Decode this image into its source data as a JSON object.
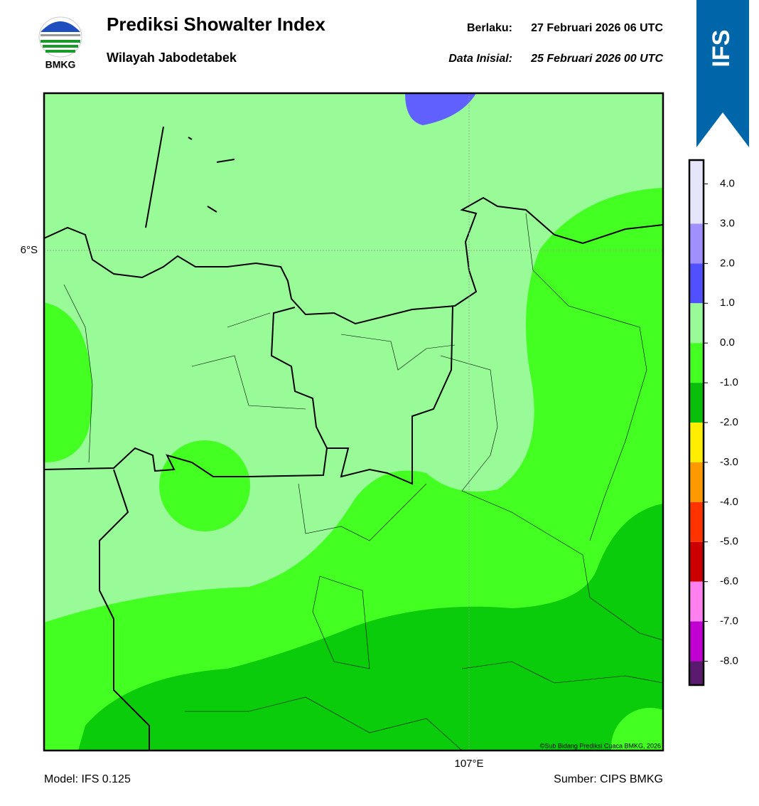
{
  "header": {
    "title": "Prediksi Showalter Index",
    "subtitle": "Wilayah Jabodetabek",
    "logo": "BMKG",
    "valid_label": "Berlaku:",
    "valid": "27 Februari 2026 06 UTC",
    "init_label": "Data Inisial:",
    "init": "25 Februari 2026 00 UTC",
    "badge": "IFS"
  },
  "map": {
    "lat_label": "6°S",
    "lon_label": "107°E",
    "credit": "©Sub Bidang Prediksi Cuaca BMKG, 2026"
  },
  "colorbar": {
    "range": [
      -8.6,
      4.6
    ],
    "bounds": [
      3,
      2,
      1,
      0,
      -1,
      -2,
      -3,
      -4,
      -5,
      -6,
      -7,
      -8
    ],
    "colors": [
      "#e6e6fa",
      "#9f8fff",
      "#5050ff",
      "#98fb98",
      "#44ff22",
      "#0abf0a",
      "#ffee00",
      "#ff9900",
      "#ff3300",
      "#cc0000",
      "#ff80ee",
      "#c000d0",
      "#5a1a6e"
    ],
    "ticks": [
      {
        "value": 4,
        "label": "4.0"
      },
      {
        "value": 3,
        "label": "3.0"
      },
      {
        "value": 2,
        "label": "2.0"
      },
      {
        "value": 1,
        "label": "1.0"
      },
      {
        "value": 0,
        "label": "0.0"
      },
      {
        "value": -1,
        "label": "-1.0"
      },
      {
        "value": -2,
        "label": "-2.0"
      },
      {
        "value": -3,
        "label": "-3.0"
      },
      {
        "value": -4,
        "label": "-4.0"
      },
      {
        "value": -5,
        "label": "-5.0"
      },
      {
        "value": -6,
        "label": "-6.0"
      },
      {
        "value": -7,
        "label": "-7.0"
      },
      {
        "value": -8,
        "label": "-8.0"
      }
    ]
  },
  "footer": {
    "model": "Model: IFS 0.125",
    "source": "Sumber: CIPS BMKG"
  }
}
